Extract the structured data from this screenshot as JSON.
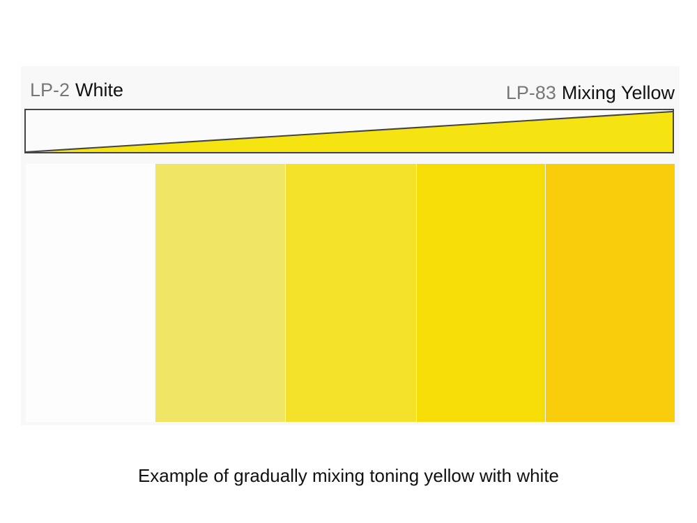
{
  "left_label": {
    "code": "LP-2",
    "name": "White"
  },
  "right_label": {
    "code": "LP-83",
    "name": "Mixing Yellow"
  },
  "swatches": [
    {
      "color": "#fdfdfd"
    },
    {
      "color": "#f1e565"
    },
    {
      "color": "#f4e22a"
    },
    {
      "color": "#f7dd08"
    },
    {
      "color": "#f8cc0a"
    }
  ],
  "wedge_color": "#f5e312",
  "caption": "Example of gradually mixing toning yellow with white"
}
